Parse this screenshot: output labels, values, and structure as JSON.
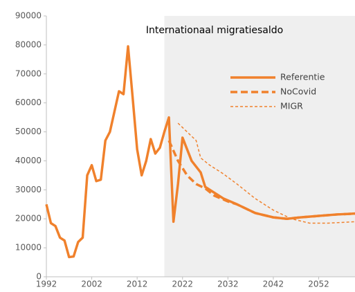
{
  "chart_data": {
    "type": "line",
    "title": "Internationaal migratiesaldo",
    "xlim": [
      1992,
      2060
    ],
    "xticks": [
      1992,
      2002,
      2012,
      2022,
      2032,
      2042,
      2052
    ],
    "ylim": [
      0,
      90000
    ],
    "yticks": [
      0,
      10000,
      20000,
      30000,
      40000,
      50000,
      60000,
      70000,
      80000,
      90000
    ],
    "grid": false,
    "legend": "upper right",
    "shade_xlim": [
      2018,
      2060
    ],
    "shade_color": "#efefef",
    "series": [
      {
        "name": "Referentie",
        "color": "#f0812c",
        "width": 3.5,
        "dash": "solid",
        "x": [
          1992,
          1993,
          1994,
          1995,
          1996,
          1997,
          1998,
          1999,
          2000,
          2001,
          2002,
          2003,
          2004,
          2005,
          2006,
          2007,
          2008,
          2009,
          2010,
          2011,
          2012,
          2013,
          2014,
          2015,
          2016,
          2017,
          2018,
          2019,
          2020,
          2021,
          2022,
          2023,
          2024,
          2025,
          2026,
          2027,
          2029,
          2031,
          2034,
          2038,
          2042,
          2045,
          2048,
          2052,
          2056,
          2060
        ],
        "values": [
          25000,
          18500,
          17500,
          13500,
          12500,
          6800,
          7000,
          12000,
          13500,
          35000,
          38500,
          33000,
          33500,
          47000,
          50000,
          57000,
          64000,
          63000,
          79500,
          62000,
          44000,
          35000,
          40000,
          47500,
          42500,
          44500,
          50000,
          55000,
          19000,
          32000,
          48000,
          44000,
          40000,
          38000,
          36000,
          31000,
          29000,
          27000,
          25000,
          22000,
          20500,
          20000,
          20500,
          21000,
          21500,
          21800
        ]
      },
      {
        "name": "NoCovid",
        "color": "#f0812c",
        "width": 3.5,
        "dash": "long",
        "x": [
          2019,
          2021,
          2023,
          2025,
          2027,
          2029,
          2032,
          2034,
          2038,
          2042,
          2045,
          2048,
          2052,
          2056,
          2060
        ],
        "values": [
          47000,
          40000,
          35000,
          32000,
          30500,
          28000,
          26000,
          25000,
          22000,
          20500,
          20000,
          20500,
          21000,
          21500,
          21800
        ]
      },
      {
        "name": "MIGR",
        "color": "#f0812c",
        "width": 1.5,
        "dash": "short",
        "x": [
          2021,
          2023,
          2025,
          2026,
          2028,
          2031,
          2034,
          2038,
          2042,
          2046,
          2050,
          2054,
          2060
        ],
        "values": [
          53000,
          50000,
          47000,
          41000,
          38500,
          35500,
          32000,
          27000,
          23000,
          20000,
          18500,
          18500,
          19000
        ]
      }
    ]
  }
}
